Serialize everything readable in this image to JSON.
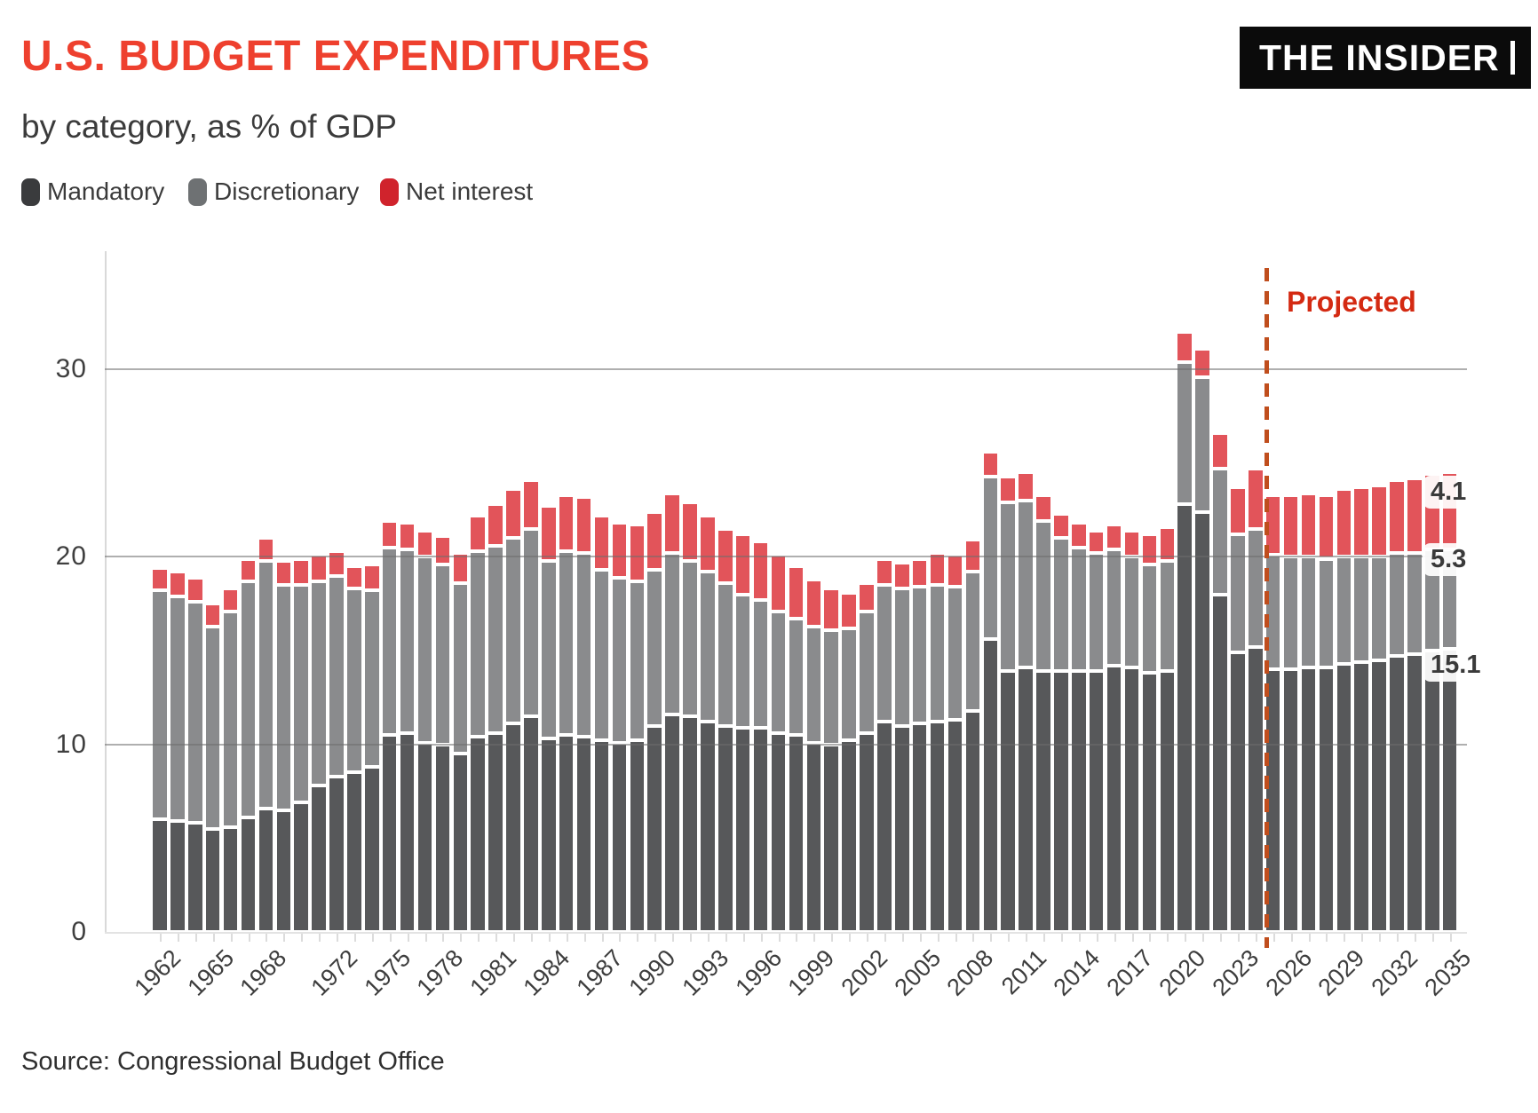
{
  "header": {
    "title": "U.S. BUDGET EXPENDITURES",
    "subtitle": "by category, as % of GDP",
    "logo": "THE INSIDER"
  },
  "legend": {
    "items": [
      {
        "label": "Mandatory",
        "swatch_color": "#3a3b3d"
      },
      {
        "label": "Discretionary",
        "swatch_color": "#6e7173"
      },
      {
        "label": "Net interest",
        "swatch_color": "#d0232c"
      }
    ]
  },
  "annotations": {
    "projected": "Projected",
    "projection_start_year": 2025,
    "end_labels": {
      "net_interest": "4.1",
      "discretionary": "5.3",
      "mandatory": "15.1"
    }
  },
  "source": "Source: Congressional Budget Office",
  "colors": {
    "title": "#ee402e",
    "bar_mandatory": "#57585a",
    "bar_discretionary": "#8a8b8d",
    "bar_net_interest": "#e2545a",
    "projection_line": "#c04e1d",
    "projected_text": "#d42a12"
  },
  "chart_data": {
    "type": "bar",
    "stacked": true,
    "title": "U.S. BUDGET EXPENDITURES",
    "subtitle": "by category, as % of GDP",
    "ylabel": "",
    "xlabel": "",
    "ylim": [
      0,
      36
    ],
    "yticks": [
      0,
      10,
      20,
      30
    ],
    "grid": true,
    "legend_position": "top",
    "x_labeled_years": [
      1962,
      1965,
      1968,
      1972,
      1975,
      1978,
      1981,
      1984,
      1987,
      1990,
      1993,
      1996,
      1999,
      2002,
      2005,
      2008,
      2011,
      2014,
      2017,
      2020,
      2023,
      2026,
      2029,
      2032,
      2035
    ],
    "x": [
      1962,
      1963,
      1964,
      1965,
      1966,
      1967,
      1968,
      1969,
      1970,
      1971,
      1972,
      1973,
      1974,
      1975,
      1976,
      1977,
      1978,
      1979,
      1980,
      1981,
      1982,
      1983,
      1984,
      1985,
      1986,
      1987,
      1988,
      1989,
      1990,
      1991,
      1992,
      1993,
      1994,
      1995,
      1996,
      1997,
      1998,
      1999,
      2000,
      2001,
      2002,
      2003,
      2004,
      2005,
      2006,
      2007,
      2008,
      2009,
      2010,
      2011,
      2012,
      2013,
      2014,
      2015,
      2016,
      2017,
      2018,
      2019,
      2020,
      2021,
      2022,
      2023,
      2024,
      2025,
      2026,
      2027,
      2028,
      2029,
      2030,
      2031,
      2032,
      2033,
      2034,
      2035
    ],
    "series": [
      {
        "name": "Mandatory",
        "values": [
          6.0,
          5.9,
          5.8,
          5.5,
          5.6,
          6.1,
          6.6,
          6.5,
          6.9,
          7.8,
          8.3,
          8.5,
          8.8,
          10.5,
          10.6,
          10.1,
          10.0,
          9.5,
          10.4,
          10.6,
          11.1,
          11.5,
          10.3,
          10.5,
          10.4,
          10.2,
          10.1,
          10.2,
          11.0,
          11.6,
          11.5,
          11.2,
          11.0,
          10.9,
          10.9,
          10.6,
          10.5,
          10.1,
          10.0,
          10.2,
          10.6,
          11.2,
          11.0,
          11.1,
          11.2,
          11.3,
          11.8,
          15.6,
          13.9,
          14.1,
          13.9,
          13.9,
          13.9,
          13.9,
          14.2,
          14.1,
          13.8,
          13.9,
          22.8,
          22.4,
          18.0,
          14.9,
          15.2,
          14.0,
          14.0,
          14.1,
          14.1,
          14.3,
          14.4,
          14.5,
          14.7,
          14.8,
          15.0,
          15.1
        ]
      },
      {
        "name": "Discretionary",
        "values": [
          12.2,
          12.0,
          11.8,
          10.8,
          11.5,
          12.6,
          13.2,
          12.0,
          11.6,
          10.9,
          10.7,
          9.8,
          9.4,
          10.0,
          9.8,
          9.9,
          9.6,
          9.1,
          9.9,
          10.0,
          9.9,
          10.0,
          9.5,
          9.8,
          9.8,
          9.1,
          8.8,
          8.5,
          8.3,
          8.6,
          8.3,
          8.0,
          7.6,
          7.1,
          6.8,
          6.5,
          6.2,
          6.2,
          6.1,
          6.0,
          6.5,
          7.3,
          7.3,
          7.3,
          7.3,
          7.1,
          7.4,
          8.7,
          9.0,
          8.9,
          8.0,
          7.1,
          6.6,
          6.3,
          6.2,
          5.9,
          5.8,
          5.9,
          7.6,
          7.2,
          6.7,
          6.3,
          6.3,
          6.1,
          6.0,
          5.9,
          5.8,
          5.7,
          5.6,
          5.5,
          5.5,
          5.4,
          5.4,
          5.3
        ]
      },
      {
        "name": "Net interest",
        "values": [
          1.2,
          1.3,
          1.3,
          1.2,
          1.2,
          1.2,
          1.2,
          1.3,
          1.4,
          1.4,
          1.3,
          1.2,
          1.4,
          1.4,
          1.4,
          1.4,
          1.5,
          1.6,
          1.9,
          2.2,
          2.6,
          2.6,
          2.9,
          3.0,
          3.0,
          2.9,
          2.9,
          3.0,
          3.1,
          3.2,
          3.1,
          3.0,
          2.9,
          3.2,
          3.1,
          3.0,
          2.8,
          2.5,
          2.2,
          1.9,
          1.5,
          1.4,
          1.4,
          1.5,
          1.7,
          1.7,
          1.7,
          1.3,
          1.4,
          1.5,
          1.4,
          1.3,
          1.3,
          1.2,
          1.3,
          1.4,
          1.6,
          1.8,
          1.6,
          1.5,
          1.9,
          2.5,
          3.2,
          3.2,
          3.3,
          3.4,
          3.4,
          3.6,
          3.7,
          3.8,
          3.9,
          4.0,
          4.0,
          4.1
        ]
      }
    ]
  }
}
